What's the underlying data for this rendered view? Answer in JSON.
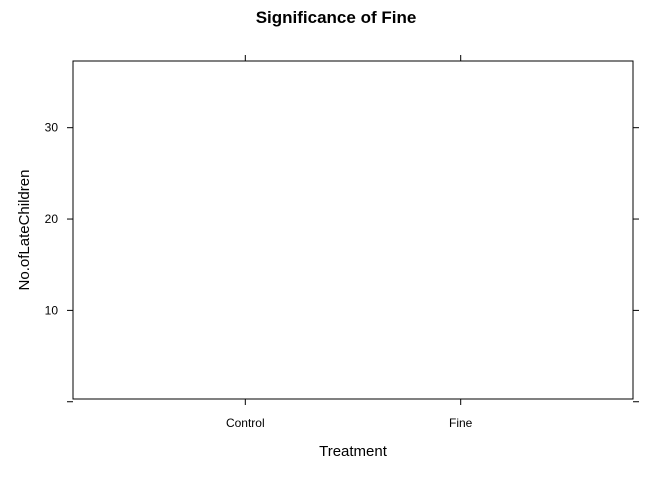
{
  "chart_data": {
    "type": "scatter",
    "title": "Significance of Fine",
    "xlabel": "Treatment",
    "ylabel": "No.ofLateChildren",
    "categories": [
      "Control",
      "Fine"
    ],
    "y_ticks": [
      10,
      20,
      30
    ],
    "ylim": [
      0.3,
      37.3
    ],
    "series": [],
    "grid": false,
    "legend": "none"
  }
}
